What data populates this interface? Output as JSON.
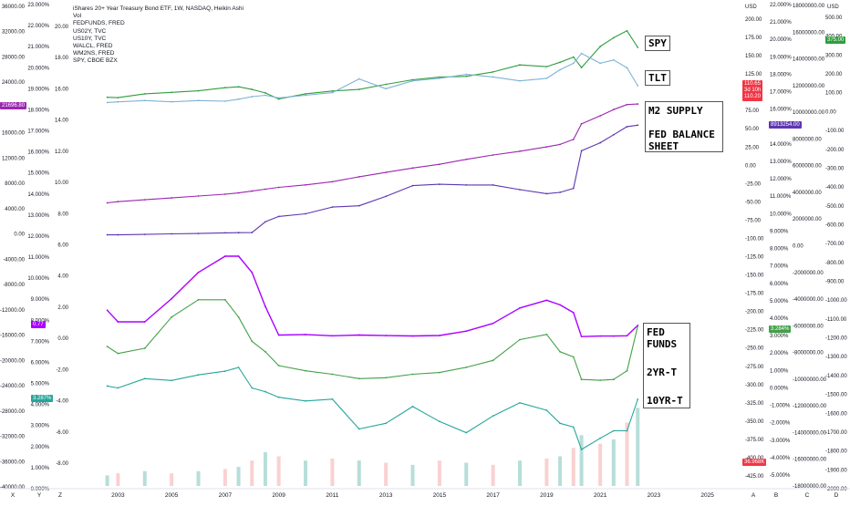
{
  "legend": {
    "title": "iShares 20+ Year Treasury Bond ETF, 1W, NASDAQ, Heikin Ashi",
    "lines": [
      "Vol",
      "FEDFUNDS, FRED",
      "US02Y, TVC",
      "US10Y, TVC",
      "WALCL, FRED",
      "WM2NS, FRED",
      "SPY, CBOE BZX"
    ]
  },
  "annotations": {
    "spy": "SPY",
    "tlt": "TLT",
    "m2": "M2 SUPPLY",
    "fed_balance": "FED BALANCE SHEET",
    "fed_funds": "FED FUNDS",
    "two_yr": "2YR-T",
    "ten_yr": "10YR-T"
  },
  "price_tags": {
    "tlt_close": "110.65",
    "tlt_countdown": "3d 10h",
    "tlt_low": "110.20",
    "spy": "375.00",
    "walcl": "8913254.00",
    "m2": "21696.80",
    "fedfunds": "0.77",
    "us02y": "3.284%",
    "us10y": "3.287%",
    "vol": "36.968K"
  },
  "axes": {
    "far_left": [
      "36000.00",
      "32000.00",
      "28000.00",
      "24000.00",
      "20000.00",
      "16000.00",
      "12000.00",
      "8000.00",
      "4000.00",
      "0.00",
      "-4000.00",
      "-8000.00",
      "-12000.00",
      "-16000.00",
      "-20000.00",
      "-24000.00",
      "-28000.00",
      "-32000.00",
      "-36000.00",
      "-40000.00"
    ],
    "left_pct": [
      "23.000%",
      "22.000%",
      "21.000%",
      "20.000%",
      "19.000%",
      "18.000%",
      "17.000%",
      "16.000%",
      "15.000%",
      "14.000%",
      "13.000%",
      "12.000%",
      "11.000%",
      "10.000%",
      "9.000%",
      "8.000%",
      "7.000%",
      "6.000%",
      "5.000%",
      "4.000%",
      "3.000%",
      "2.000%",
      "1.000%",
      "0.000%"
    ],
    "left_small": [
      "20.00",
      "18.00",
      "16.00",
      "14.00",
      "12.00",
      "10.00",
      "8.00",
      "6.00",
      "4.00",
      "2.00",
      "0.00",
      "-2.00",
      "-4.00",
      "-6.00",
      "-8.00"
    ],
    "right_usd_unit": "USD",
    "right_usd": [
      "200.00",
      "175.00",
      "150.00",
      "125.00",
      "100.00",
      "75.00",
      "50.00",
      "25.00",
      "0.00",
      "-25.00",
      "-50.00",
      "-75.00",
      "-100.00",
      "-125.00",
      "-150.00",
      "-175.00",
      "-200.00",
      "-225.00",
      "-250.00",
      "-275.00",
      "-300.00",
      "-325.00",
      "-350.00",
      "-375.00",
      "-400.00",
      "-425.00"
    ],
    "right_pct": [
      "22.000%",
      "21.000%",
      "20.000%",
      "19.000%",
      "18.000%",
      "17.000%",
      "16.000%",
      "15.000%",
      "14.000%",
      "13.000%",
      "12.000%",
      "11.000%",
      "10.000%",
      "9.000%",
      "8.000%",
      "7.000%",
      "6.000%",
      "5.000%",
      "4.000%",
      "3.000%",
      "2.000%",
      "1.000%",
      "0.000%",
      "-1.000%",
      "-2.000%",
      "-3.000%",
      "-4.000%",
      "-5.000%"
    ],
    "right_big": [
      "18000000.00",
      "16000000.00",
      "14000000.00",
      "12000000.00",
      "10000000.00",
      "8000000.00",
      "6000000.00",
      "4000000.00",
      "2000000.00",
      "0.00",
      "-2000000.00",
      "-4000000.00",
      "-6000000.00",
      "-8000000.00",
      "-10000000.00",
      "-12000000.00",
      "-14000000.00",
      "-16000000.00",
      "-18000000.00"
    ],
    "far_right_unit": "USD",
    "far_right": [
      "500.00",
      "400.00",
      "300.00",
      "200.00",
      "100.00",
      "0.00",
      "-100.00",
      "-200.00",
      "-300.00",
      "-400.00",
      "-500.00",
      "-600.00",
      "-700.00",
      "-800.00",
      "-900.00",
      "-1000.00",
      "-1100.00",
      "-1200.00",
      "-1300.00",
      "-1400.00",
      "-1500.00",
      "-1600.00",
      "-1700.00",
      "-1800.00",
      "-1900.00",
      "-2000.00"
    ],
    "x_years": [
      "2003",
      "2005",
      "2007",
      "2009",
      "2011",
      "2013",
      "2015",
      "2017",
      "2019",
      "2021",
      "2023",
      "2025"
    ],
    "bottom_letters_left": [
      "X",
      "Y",
      "Z"
    ],
    "bottom_letters_right": [
      "A",
      "B",
      "C",
      "D"
    ]
  },
  "colors": {
    "spy": "#2e9e3e",
    "tlt_up": "#7fb3d5",
    "tlt_down": "#ef9a9a",
    "m2": "#9c27b0",
    "walcl": "#5e35b1",
    "fedfunds": "#aa00ff",
    "us02y": "#43a047",
    "us10y": "#26a69a",
    "vol_up": "#a5d6d0",
    "vol_down": "#f7c5c5",
    "tag_red": "#f23645"
  },
  "chart_data": {
    "type": "line",
    "title": "iShares 20+ Year Treasury Bond ETF, 1W, NASDAQ, Heikin Ashi",
    "x": [
      2002.6,
      2003,
      2004,
      2005,
      2006,
      2007,
      2007.5,
      2008,
      2008.5,
      2009,
      2010,
      2011,
      2012,
      2013,
      2014,
      2015,
      2016,
      2017,
      2018,
      2019,
      2019.5,
      2020,
      2020.3,
      2021,
      2021.5,
      2022,
      2022.4
    ],
    "series": [
      {
        "name": "SPY",
        "axis": "USD",
        "values": [
          90,
          88,
          110,
          118,
          127,
          145,
          150,
          135,
          115,
          80,
          110,
          126,
          135,
          164,
          190,
          205,
          210,
          235,
          275,
          265,
          290,
          320,
          260,
          380,
          430,
          470,
          375
        ]
      },
      {
        "name": "TLT",
        "axis": "USD",
        "values": [
          85,
          86,
          88,
          86,
          88,
          87,
          90,
          94,
          96,
          92,
          96,
          100,
          121,
          106,
          118,
          122,
          128,
          124,
          118,
          122,
          135,
          145,
          160,
          145,
          150,
          138,
          110.65
        ]
      },
      {
        "name": "WM2NS",
        "axis": "far_left",
        "values": [
          5800,
          6000,
          6300,
          6600,
          6900,
          7200,
          7400,
          7700,
          8000,
          8300,
          8700,
          9200,
          10000,
          10700,
          11400,
          12000,
          12800,
          13500,
          14100,
          14800,
          15200,
          16000,
          18500,
          19800,
          20800,
          21600,
          21696.8
        ]
      },
      {
        "name": "WALCL",
        "axis": "right_big",
        "values": [
          730000,
          730000,
          760000,
          800000,
          830000,
          880000,
          890000,
          900000,
          1700000,
          2100000,
          2300000,
          2800000,
          2900000,
          3600000,
          4400000,
          4500000,
          4450000,
          4450000,
          4100000,
          3800000,
          3900000,
          4200000,
          7000000,
          7600000,
          8200000,
          8800000,
          8913254
        ]
      },
      {
        "name": "FEDFUNDS",
        "axis": "left_small",
        "values": [
          1.75,
          1.0,
          1.0,
          2.5,
          4.2,
          5.25,
          5.25,
          4.2,
          2.0,
          0.15,
          0.18,
          0.1,
          0.15,
          0.11,
          0.09,
          0.12,
          0.4,
          0.9,
          1.9,
          2.4,
          2.1,
          1.6,
          0.05,
          0.08,
          0.08,
          0.1,
          0.77
        ]
      },
      {
        "name": "US02Y",
        "axis": "left_pct",
        "values": [
          2.1,
          1.7,
          2.0,
          3.8,
          4.8,
          4.8,
          3.8,
          2.4,
          1.8,
          1.0,
          0.7,
          0.5,
          0.25,
          0.3,
          0.5,
          0.6,
          0.9,
          1.3,
          2.5,
          2.8,
          1.8,
          1.5,
          0.2,
          0.15,
          0.2,
          0.7,
          3.284
        ]
      },
      {
        "name": "US10Y",
        "axis": "left_pct",
        "values": [
          4.0,
          3.9,
          4.4,
          4.3,
          4.6,
          4.8,
          5.0,
          3.9,
          3.7,
          3.4,
          3.2,
          3.3,
          1.7,
          2.0,
          2.9,
          2.1,
          1.5,
          2.4,
          3.1,
          2.7,
          2.0,
          1.8,
          0.6,
          1.2,
          1.6,
          1.6,
          3.287
        ]
      },
      {
        "name": "Vol",
        "axis": "volume",
        "values": [
          5,
          6,
          7,
          6,
          7,
          8,
          9,
          12,
          16,
          14,
          12,
          13,
          12,
          11,
          10,
          12,
          11,
          10,
          12,
          13,
          14,
          18,
          24,
          20,
          22,
          30,
          36.968
        ]
      }
    ],
    "xlim": [
      2002,
      2026
    ],
    "grid": false,
    "legend": "top-left"
  }
}
